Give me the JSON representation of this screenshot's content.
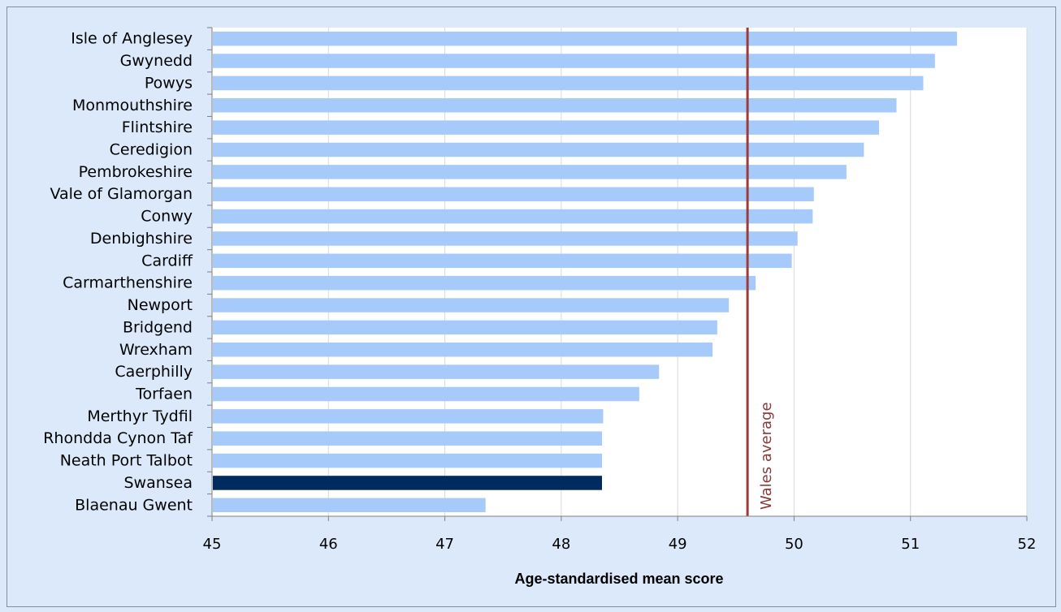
{
  "chart_data": {
    "type": "bar",
    "orientation": "horizontal",
    "categories": [
      "Isle of Anglesey",
      "Gwynedd",
      "Powys",
      "Monmouthshire",
      "Flintshire",
      "Ceredigion",
      "Pembrokeshire",
      "Vale of Glamorgan",
      "Conwy",
      "Denbighshire",
      "Cardiff",
      "Carmarthenshire",
      "Newport",
      "Bridgend",
      "Wrexham",
      "Caerphilly",
      "Torfaen",
      "Merthyr Tydfil",
      "Rhondda Cynon Taf",
      "Neath Port Talbot",
      "Swansea",
      "Blaenau Gwent"
    ],
    "values": [
      51.4,
      51.21,
      51.11,
      50.88,
      50.73,
      50.6,
      50.45,
      50.17,
      50.16,
      50.03,
      49.98,
      49.67,
      49.44,
      49.34,
      49.3,
      48.84,
      48.67,
      48.36,
      48.35,
      48.35,
      48.35,
      47.35
    ],
    "highlight_category": "Swansea",
    "xlim": [
      45,
      52
    ],
    "xticks": [
      45,
      46,
      47,
      48,
      49,
      50,
      51,
      52
    ],
    "xlabel": "Age-standardised mean score",
    "ylabel": "",
    "grid": "vertical",
    "reference_line": {
      "value": 49.6,
      "label": "Wales average",
      "color": "#9b3b3b"
    },
    "colors": {
      "bar": "#a6cbfa",
      "highlight": "#002b5e",
      "background": "#dbe9fb",
      "plot_background": "#ffffff",
      "grid": "#d9d9d9"
    }
  }
}
